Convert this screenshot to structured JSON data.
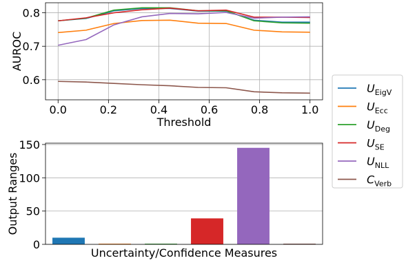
{
  "chart_data": [
    {
      "type": "line",
      "xlabel": "Threshold",
      "ylabel": "AUROC",
      "xlim": [
        -0.05,
        1.05
      ],
      "ylim": [
        0.54,
        0.83
      ],
      "xticks": [
        0.0,
        0.2,
        0.4,
        0.6,
        0.8,
        1.0
      ],
      "xtick_labels": [
        "0.0",
        "0.2",
        "0.4",
        "0.6",
        "0.8",
        "1.0"
      ],
      "yticks": [
        0.6,
        0.7,
        0.8
      ],
      "ytick_labels": [
        "0.6",
        "0.7",
        "0.8"
      ],
      "grid": true,
      "x": [
        0.0,
        0.111,
        0.222,
        0.333,
        0.444,
        0.556,
        0.667,
        0.778,
        0.889,
        1.0
      ],
      "series": [
        {
          "key": "eigv",
          "color": "#1f77b4",
          "values": [
            0.776,
            0.783,
            0.806,
            0.813,
            0.813,
            0.805,
            0.805,
            0.778,
            0.772,
            0.772
          ]
        },
        {
          "key": "ecc",
          "color": "#ff7f0e",
          "values": [
            0.741,
            0.748,
            0.768,
            0.777,
            0.778,
            0.769,
            0.768,
            0.748,
            0.743,
            0.742
          ]
        },
        {
          "key": "deg",
          "color": "#2ca02c",
          "values": [
            0.776,
            0.784,
            0.808,
            0.815,
            0.815,
            0.806,
            0.806,
            0.776,
            0.77,
            0.769
          ]
        },
        {
          "key": "se",
          "color": "#d62728",
          "values": [
            0.776,
            0.785,
            0.8,
            0.809,
            0.814,
            0.806,
            0.808,
            0.787,
            0.787,
            0.786
          ]
        },
        {
          "key": "nll",
          "color": "#9467bd",
          "values": [
            0.703,
            0.72,
            0.764,
            0.788,
            0.798,
            0.797,
            0.801,
            0.784,
            0.787,
            0.788
          ]
        },
        {
          "key": "verb",
          "color": "#8c564b",
          "values": [
            0.595,
            0.593,
            0.589,
            0.585,
            0.582,
            0.577,
            0.576,
            0.564,
            0.561,
            0.56
          ]
        }
      ]
    },
    {
      "type": "bar",
      "xlabel": "Uncertainty/Confidence Measures",
      "ylabel": "Output Ranges",
      "ylim": [
        0,
        152
      ],
      "yticks": [
        0,
        50,
        100,
        150
      ],
      "ytick_labels": [
        "0",
        "50",
        "100",
        "150"
      ],
      "grid": true,
      "bars": [
        {
          "key": "eigv",
          "color": "#1f77b4",
          "value": 10
        },
        {
          "key": "ecc",
          "color": "#ff7f0e",
          "value": 1
        },
        {
          "key": "deg",
          "color": "#2ca02c",
          "value": 1
        },
        {
          "key": "se",
          "color": "#d62728",
          "value": 39
        },
        {
          "key": "nll",
          "color": "#9467bd",
          "value": 145
        },
        {
          "key": "verb",
          "color": "#8c564b",
          "value": 1
        }
      ]
    }
  ],
  "legend": {
    "placement": "right",
    "entries": [
      {
        "key": "eigv",
        "main": "U",
        "sub": "EigV",
        "color": "#1f77b4"
      },
      {
        "key": "ecc",
        "main": "U",
        "sub": "Ecc",
        "color": "#ff7f0e"
      },
      {
        "key": "deg",
        "main": "U",
        "sub": "Deg",
        "color": "#2ca02c"
      },
      {
        "key": "se",
        "main": "U",
        "sub": "SE",
        "color": "#d62728"
      },
      {
        "key": "nll",
        "main": "U",
        "sub": "NLL",
        "color": "#9467bd"
      },
      {
        "key": "verb",
        "main": "C",
        "sub": "Verb",
        "color": "#8c564b"
      }
    ]
  }
}
